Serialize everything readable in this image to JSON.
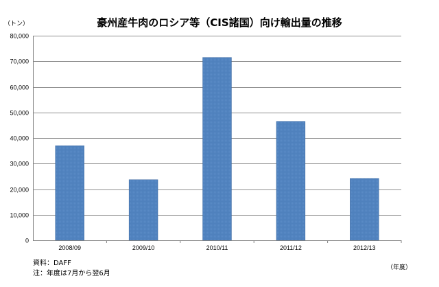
{
  "chart_data": {
    "type": "bar",
    "title": "豪州産牛肉のロシア等（CIS諸国）向け輸出量の推移",
    "ylabel": "（トン）",
    "xlabel": "（年度）",
    "categories": [
      "2008/09",
      "2009/10",
      "2010/11",
      "2011/12",
      "2012/13"
    ],
    "values": [
      37000,
      23700,
      71500,
      46500,
      24200
    ],
    "ylim": [
      0,
      80000
    ],
    "yticks": [
      "0",
      "10,000",
      "20,000",
      "30,000",
      "40,000",
      "50,000",
      "60,000",
      "70,000",
      "80,000"
    ],
    "ytick_values": [
      0,
      10000,
      20000,
      30000,
      40000,
      50000,
      60000,
      70000,
      80000
    ],
    "grid": true,
    "legend": "none",
    "colors": {
      "bar": "#4f81bd",
      "bar_edge": "#3a67a0",
      "grid": "#8c8c8c"
    }
  },
  "notes": {
    "source": "資料：DAFF",
    "note": "注：年度は7月から翌6月"
  }
}
